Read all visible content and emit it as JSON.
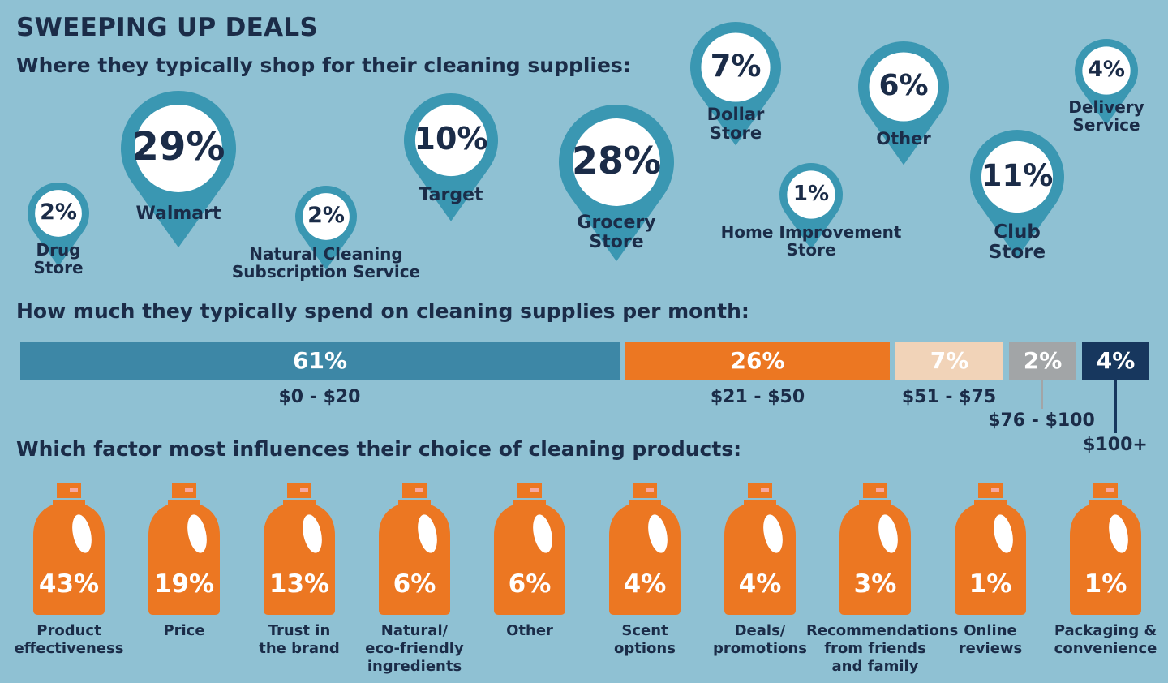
{
  "title": "SWEEPING UP DEALS",
  "shop_title": "Where they typically shop for their cleaning supplies:",
  "spend_title": "How much they typically spend on cleaning supplies per month:",
  "factor_title": "Which factor most influences their choice of cleaning products:",
  "colors": {
    "background": "#8fc1d3",
    "pin": "#3a97b2",
    "text": "#1b2c48",
    "spend": [
      "#3d87a6",
      "#ec7722",
      "#f1d3b8",
      "#a2a5a7",
      "#17375e"
    ],
    "bottle": "#ec7722",
    "bottle_cap": "#f7a8a0"
  },
  "chart_data": [
    {
      "type": "bar",
      "title": "Where they typically shop for their cleaning supplies:",
      "categories": [
        "Drug Store",
        "Walmart",
        "Natural Cleaning Subscription Service",
        "Target",
        "Grocery Store",
        "Dollar Store",
        "Home Improvement Store",
        "Other",
        "Club Store",
        "Delivery Service"
      ],
      "values": [
        2,
        29,
        2,
        10,
        28,
        7,
        1,
        6,
        11,
        4
      ],
      "value_labels": [
        "2%",
        "29%",
        "2%",
        "10%",
        "28%",
        "7%",
        "1%",
        "6%",
        "11%",
        "4%"
      ],
      "label_lines": [
        [
          "Drug",
          "Store"
        ],
        [
          "Walmart"
        ],
        [
          "Natural Cleaning",
          "Subscription Service"
        ],
        [
          "Target"
        ],
        [
          "Grocery",
          "Store"
        ],
        [
          "Dollar",
          "Store"
        ],
        [
          "Home Improvement",
          "Store"
        ],
        [
          "Other"
        ],
        [
          "Club",
          "Store"
        ],
        [
          "Delivery",
          "Service"
        ]
      ],
      "unit": "%"
    },
    {
      "type": "bar",
      "title": "How much they typically spend on cleaning supplies per month:",
      "categories": [
        "$0 - $20",
        "$21 - $50",
        "$51 - $75",
        "$76 - $100",
        "$100+"
      ],
      "values": [
        61,
        26,
        7,
        2,
        4
      ],
      "value_labels": [
        "61%",
        "26%",
        "7%",
        "2%",
        "4%"
      ],
      "stacked": true,
      "unit": "%"
    },
    {
      "type": "bar",
      "title": "Which factor most influences their choice of cleaning products:",
      "categories": [
        "Product effectiveness",
        "Price",
        "Trust in the brand",
        "Natural/ eco-friendly ingredients",
        "Other",
        "Scent options",
        "Deals/ promotions",
        "Recommendations from friends and family",
        "Online reviews",
        "Packaging & convenience"
      ],
      "values": [
        43,
        19,
        13,
        6,
        6,
        4,
        4,
        3,
        1,
        1
      ],
      "value_labels": [
        "43%",
        "19%",
        "13%",
        "6%",
        "6%",
        "4%",
        "4%",
        "3%",
        "1%",
        "1%"
      ],
      "label_lines": [
        [
          "Product",
          "effectiveness"
        ],
        [
          "Price"
        ],
        [
          "Trust in",
          "the brand"
        ],
        [
          "Natural/",
          "eco-friendly",
          "ingredients"
        ],
        [
          "Other"
        ],
        [
          "Scent",
          "options"
        ],
        [
          "Deals/",
          "promotions"
        ],
        [
          "Recommendations",
          "from friends",
          "and family"
        ],
        [
          "Online",
          "reviews"
        ],
        [
          "Packaging &",
          "convenience"
        ]
      ],
      "unit": "%"
    }
  ]
}
